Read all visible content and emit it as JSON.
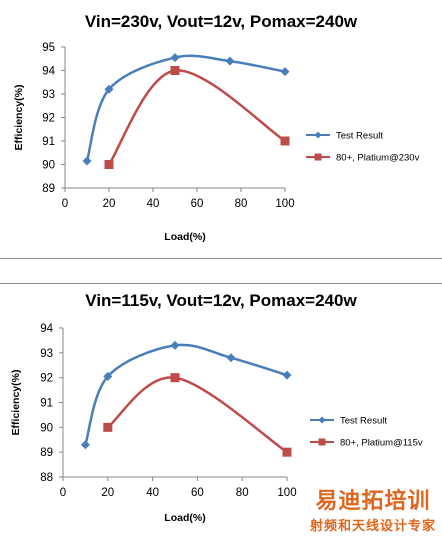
{
  "chart_data": [
    {
      "type": "line",
      "title": "Vin=230v, Vout=12v, Pomax=240w",
      "xlabel": "Load(%)",
      "ylabel": "Efficiency(%)",
      "xlim": [
        0,
        100
      ],
      "ylim": [
        89,
        95
      ],
      "xticks": [
        0,
        20,
        40,
        60,
        80,
        100
      ],
      "yticks": [
        89,
        90,
        91,
        92,
        93,
        94,
        95
      ],
      "grid": false,
      "legend_position": "right",
      "series": [
        {
          "name": "Test Result",
          "color": "#4a7ebb",
          "marker": "diamond",
          "x": [
            10,
            20,
            50,
            75,
            100
          ],
          "y": [
            90.15,
            93.2,
            94.55,
            94.4,
            93.95
          ]
        },
        {
          "name": "80+, Platium@230v",
          "color": "#be4b48",
          "marker": "square",
          "x": [
            20,
            50,
            100
          ],
          "y": [
            90.0,
            94.0,
            91.0
          ]
        }
      ]
    },
    {
      "type": "line",
      "title": "Vin=115v, Vout=12v, Pomax=240w",
      "xlabel": "Load(%)",
      "ylabel": "Efficiency(%)",
      "xlim": [
        0,
        100
      ],
      "ylim": [
        88,
        94
      ],
      "xticks": [
        0,
        20,
        40,
        60,
        80,
        100
      ],
      "yticks": [
        88,
        89,
        90,
        91,
        92,
        93,
        94
      ],
      "grid": false,
      "legend_position": "right",
      "series": [
        {
          "name": "Test Result",
          "color": "#4a7ebb",
          "marker": "diamond",
          "x": [
            10,
            20,
            50,
            75,
            100
          ],
          "y": [
            89.3,
            92.05,
            93.3,
            92.8,
            92.1
          ]
        },
        {
          "name": "80+, Platium@115v",
          "color": "#be4b48",
          "marker": "square",
          "x": [
            20,
            50,
            100
          ],
          "y": [
            90.0,
            92.0,
            89.0
          ]
        }
      ]
    }
  ],
  "watermark": {
    "main": "易迪拓培训",
    "sub": "射频和天线设计专家"
  }
}
